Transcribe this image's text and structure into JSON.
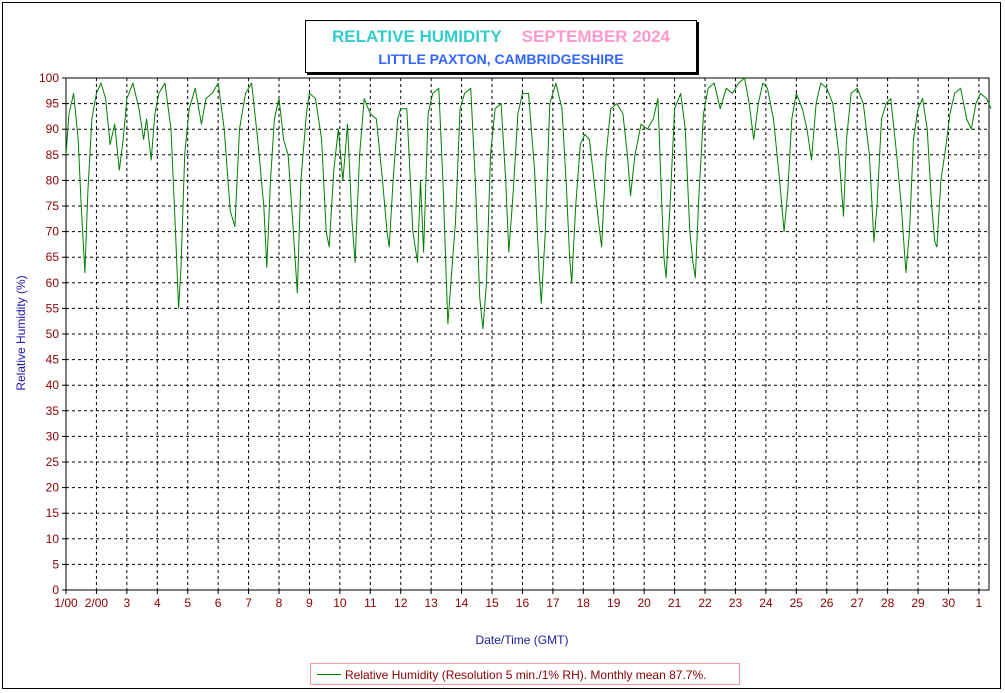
{
  "chart_data": {
    "type": "line",
    "title": "RELATIVE HUMIDITY",
    "subtitle_month": "SEPTEMBER 2024",
    "location": "LITTLE PAXTON, CAMBRIDGESHIRE",
    "xlabel": "Date/Time (GMT)",
    "ylabel": "Relative Humidity (%)",
    "ylim": [
      0,
      100
    ],
    "yticks": [
      0,
      5,
      10,
      15,
      20,
      25,
      30,
      35,
      40,
      45,
      50,
      55,
      60,
      65,
      70,
      75,
      80,
      85,
      90,
      95,
      100
    ],
    "xlim": [
      1,
      31.4
    ],
    "xticks": [
      {
        "day": 1,
        "label": "1/00"
      },
      {
        "day": 2,
        "label": "2/00"
      },
      {
        "day": 3,
        "label": "3"
      },
      {
        "day": 4,
        "label": "4"
      },
      {
        "day": 5,
        "label": "5"
      },
      {
        "day": 6,
        "label": "6"
      },
      {
        "day": 7,
        "label": "7"
      },
      {
        "day": 8,
        "label": "8"
      },
      {
        "day": 9,
        "label": "9"
      },
      {
        "day": 10,
        "label": "10"
      },
      {
        "day": 11,
        "label": "11"
      },
      {
        "day": 12,
        "label": "12"
      },
      {
        "day": 13,
        "label": "13"
      },
      {
        "day": 14,
        "label": "14"
      },
      {
        "day": 15,
        "label": "15"
      },
      {
        "day": 16,
        "label": "16"
      },
      {
        "day": 17,
        "label": "17"
      },
      {
        "day": 18,
        "label": "18"
      },
      {
        "day": 19,
        "label": "19"
      },
      {
        "day": 20,
        "label": "20"
      },
      {
        "day": 21,
        "label": "21"
      },
      {
        "day": 22,
        "label": "22"
      },
      {
        "day": 23,
        "label": "23"
      },
      {
        "day": 24,
        "label": "24"
      },
      {
        "day": 25,
        "label": "25"
      },
      {
        "day": 26,
        "label": "26"
      },
      {
        "day": 27,
        "label": "27"
      },
      {
        "day": 28,
        "label": "28"
      },
      {
        "day": 29,
        "label": "29"
      },
      {
        "day": 30,
        "label": "30"
      },
      {
        "day": 31,
        "label": "1"
      }
    ],
    "grid": true,
    "series": [
      {
        "name": "Relative Humidity (Resolution 5 min./1% RH). Monthly mean 87.7%.",
        "color": "#008000",
        "points": [
          [
            1.0,
            85
          ],
          [
            1.1,
            93
          ],
          [
            1.25,
            97
          ],
          [
            1.4,
            88
          ],
          [
            1.5,
            75
          ],
          [
            1.62,
            62
          ],
          [
            1.72,
            78
          ],
          [
            1.85,
            92
          ],
          [
            2.0,
            97
          ],
          [
            2.15,
            99
          ],
          [
            2.3,
            96
          ],
          [
            2.45,
            87
          ],
          [
            2.6,
            91
          ],
          [
            2.75,
            82
          ],
          [
            2.88,
            88
          ],
          [
            3.0,
            96
          ],
          [
            3.2,
            99
          ],
          [
            3.4,
            94
          ],
          [
            3.55,
            88
          ],
          [
            3.65,
            92
          ],
          [
            3.8,
            84
          ],
          [
            3.92,
            93
          ],
          [
            4.05,
            97
          ],
          [
            4.25,
            99
          ],
          [
            4.45,
            90
          ],
          [
            4.6,
            70
          ],
          [
            4.7,
            55
          ],
          [
            4.78,
            63
          ],
          [
            4.9,
            85
          ],
          [
            5.05,
            94
          ],
          [
            5.25,
            98
          ],
          [
            5.45,
            91
          ],
          [
            5.6,
            96
          ],
          [
            5.8,
            97
          ],
          [
            6.0,
            99
          ],
          [
            6.2,
            90
          ],
          [
            6.4,
            74
          ],
          [
            6.55,
            71
          ],
          [
            6.7,
            90
          ],
          [
            6.9,
            97
          ],
          [
            7.1,
            99
          ],
          [
            7.3,
            88
          ],
          [
            7.5,
            75
          ],
          [
            7.6,
            63
          ],
          [
            7.72,
            80
          ],
          [
            7.85,
            92
          ],
          [
            8.0,
            96
          ],
          [
            8.15,
            88
          ],
          [
            8.3,
            85
          ],
          [
            8.45,
            72
          ],
          [
            8.6,
            58
          ],
          [
            8.72,
            80
          ],
          [
            8.9,
            93
          ],
          [
            9.0,
            97
          ],
          [
            9.2,
            96
          ],
          [
            9.4,
            88
          ],
          [
            9.55,
            70
          ],
          [
            9.65,
            67
          ],
          [
            9.8,
            82
          ],
          [
            9.95,
            90
          ],
          [
            10.1,
            80
          ],
          [
            10.25,
            91
          ],
          [
            10.4,
            72
          ],
          [
            10.5,
            64
          ],
          [
            10.65,
            85
          ],
          [
            10.8,
            96
          ],
          [
            11.0,
            93
          ],
          [
            11.2,
            92
          ],
          [
            11.4,
            80
          ],
          [
            11.55,
            70
          ],
          [
            11.62,
            67
          ],
          [
            11.75,
            80
          ],
          [
            11.9,
            92
          ],
          [
            12.0,
            94
          ],
          [
            12.2,
            94
          ],
          [
            12.4,
            70
          ],
          [
            12.55,
            64
          ],
          [
            12.65,
            80
          ],
          [
            12.75,
            66
          ],
          [
            12.9,
            93
          ],
          [
            13.05,
            97
          ],
          [
            13.25,
            98
          ],
          [
            13.4,
            78
          ],
          [
            13.5,
            60
          ],
          [
            13.55,
            52
          ],
          [
            13.65,
            60
          ],
          [
            13.8,
            72
          ],
          [
            13.95,
            94
          ],
          [
            14.1,
            97
          ],
          [
            14.3,
            98
          ],
          [
            14.45,
            80
          ],
          [
            14.6,
            57
          ],
          [
            14.7,
            51
          ],
          [
            14.82,
            60
          ],
          [
            14.95,
            85
          ],
          [
            15.1,
            94
          ],
          [
            15.3,
            95
          ],
          [
            15.45,
            80
          ],
          [
            15.55,
            66
          ],
          [
            15.7,
            78
          ],
          [
            15.85,
            93
          ],
          [
            16.0,
            97
          ],
          [
            16.2,
            97
          ],
          [
            16.4,
            82
          ],
          [
            16.55,
            62
          ],
          [
            16.62,
            56
          ],
          [
            16.75,
            70
          ],
          [
            16.9,
            95
          ],
          [
            17.1,
            99
          ],
          [
            17.3,
            94
          ],
          [
            17.45,
            78
          ],
          [
            17.55,
            65
          ],
          [
            17.62,
            60
          ],
          [
            17.75,
            75
          ],
          [
            17.9,
            87
          ],
          [
            18.05,
            89
          ],
          [
            18.2,
            88
          ],
          [
            18.35,
            80
          ],
          [
            18.5,
            72
          ],
          [
            18.6,
            67
          ],
          [
            18.75,
            85
          ],
          [
            18.9,
            94
          ],
          [
            19.1,
            95
          ],
          [
            19.3,
            93
          ],
          [
            19.45,
            85
          ],
          [
            19.55,
            77
          ],
          [
            19.7,
            85
          ],
          [
            19.9,
            91
          ],
          [
            20.1,
            90
          ],
          [
            20.3,
            92
          ],
          [
            20.45,
            96
          ],
          [
            20.55,
            80
          ],
          [
            20.65,
            65
          ],
          [
            20.72,
            61
          ],
          [
            20.85,
            75
          ],
          [
            21.0,
            94
          ],
          [
            21.2,
            97
          ],
          [
            21.35,
            90
          ],
          [
            21.5,
            70
          ],
          [
            21.6,
            64
          ],
          [
            21.68,
            61
          ],
          [
            21.8,
            77
          ],
          [
            21.95,
            93
          ],
          [
            22.1,
            98
          ],
          [
            22.3,
            99
          ],
          [
            22.5,
            94
          ],
          [
            22.7,
            98
          ],
          [
            22.9,
            97
          ],
          [
            23.1,
            99
          ],
          [
            23.3,
            100
          ],
          [
            23.45,
            95
          ],
          [
            23.6,
            88
          ],
          [
            23.75,
            95
          ],
          [
            23.9,
            99
          ],
          [
            24.05,
            98
          ],
          [
            24.25,
            92
          ],
          [
            24.45,
            80
          ],
          [
            24.6,
            70
          ],
          [
            24.72,
            78
          ],
          [
            24.85,
            92
          ],
          [
            25.0,
            97
          ],
          [
            25.2,
            94
          ],
          [
            25.35,
            90
          ],
          [
            25.5,
            84
          ],
          [
            25.65,
            95
          ],
          [
            25.8,
            99
          ],
          [
            26.0,
            98
          ],
          [
            26.2,
            95
          ],
          [
            26.4,
            85
          ],
          [
            26.55,
            73
          ],
          [
            26.65,
            88
          ],
          [
            26.8,
            97
          ],
          [
            27.0,
            98
          ],
          [
            27.2,
            95
          ],
          [
            27.4,
            85
          ],
          [
            27.55,
            68
          ],
          [
            27.65,
            75
          ],
          [
            27.8,
            92
          ],
          [
            27.95,
            95
          ],
          [
            28.1,
            96
          ],
          [
            28.3,
            85
          ],
          [
            28.45,
            75
          ],
          [
            28.6,
            62
          ],
          [
            28.72,
            70
          ],
          [
            28.85,
            88
          ],
          [
            29.0,
            94
          ],
          [
            29.15,
            96
          ],
          [
            29.3,
            90
          ],
          [
            29.45,
            75
          ],
          [
            29.55,
            68
          ],
          [
            29.62,
            67
          ],
          [
            29.75,
            80
          ],
          [
            29.9,
            86
          ],
          [
            30.05,
            93
          ],
          [
            30.2,
            97
          ],
          [
            30.4,
            98
          ],
          [
            30.6,
            92
          ],
          [
            30.75,
            90
          ],
          [
            30.9,
            95
          ],
          [
            31.05,
            97
          ],
          [
            31.25,
            96
          ],
          [
            31.4,
            94
          ]
        ]
      }
    ]
  },
  "legend": {
    "label": "Relative Humidity (Resolution 5 min./1% RH). Monthly mean 87.7%."
  }
}
